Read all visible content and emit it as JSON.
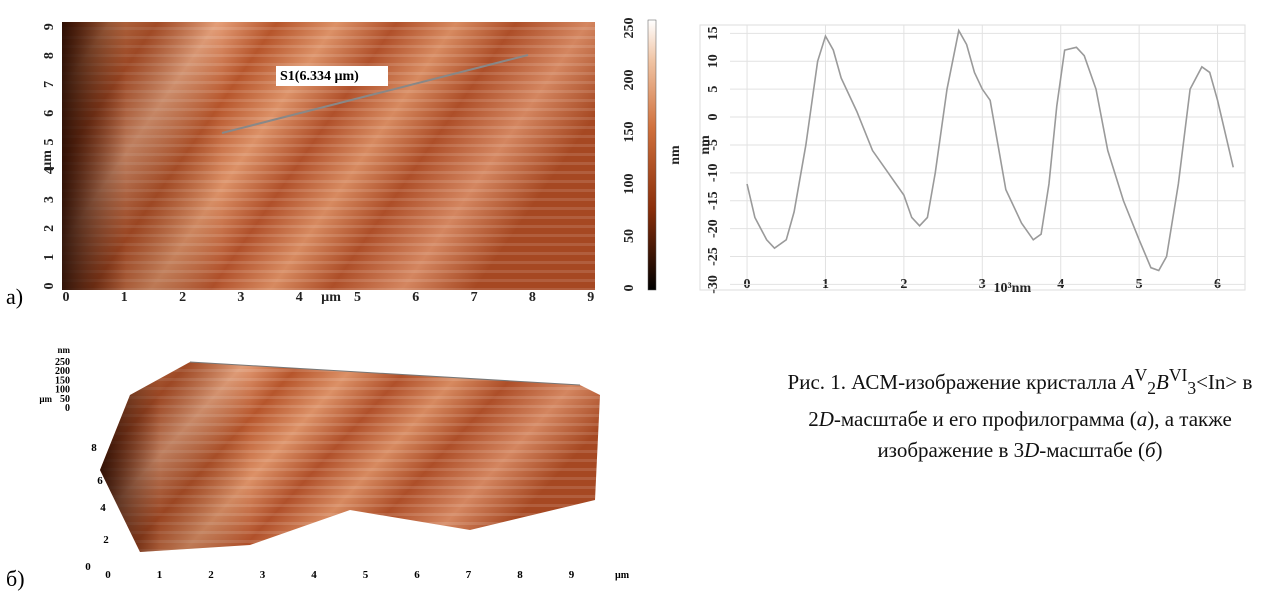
{
  "panel_a": {
    "label": "а)",
    "x_ticks": [
      "0",
      "1",
      "2",
      "3",
      "4",
      "5",
      "6",
      "7",
      "8",
      "9"
    ],
    "x_label": "µm",
    "y_ticks": [
      "0",
      "1",
      "2",
      "3",
      "4",
      "5",
      "6",
      "7",
      "8",
      "9"
    ],
    "y_label": "µm",
    "annotation": "S1(6.334 µm)",
    "colorbar_ticks": [
      "0",
      "50",
      "100",
      "150",
      "200",
      "250"
    ],
    "colorbar_label": "nm"
  },
  "chart_data": {
    "type": "line",
    "x_label": "10³nm",
    "y_label": "nm",
    "x": [
      0,
      0.1,
      0.25,
      0.35,
      0.5,
      0.6,
      0.75,
      0.9,
      1.0,
      1.1,
      1.2,
      1.4,
      1.6,
      1.8,
      2.0,
      2.1,
      2.2,
      2.3,
      2.4,
      2.55,
      2.7,
      2.8,
      2.9,
      3.0,
      3.1,
      3.2,
      3.3,
      3.5,
      3.65,
      3.75,
      3.85,
      3.95,
      4.05,
      4.2,
      4.3,
      4.45,
      4.6,
      4.8,
      5.0,
      5.15,
      5.25,
      5.35,
      5.5,
      5.65,
      5.8,
      5.9,
      6.0,
      6.1,
      6.2
    ],
    "series": [
      {
        "color": "#9a9a9a",
        "values": [
          -12,
          -18,
          -22,
          -23.5,
          -22,
          -17,
          -5,
          10,
          14.5,
          12,
          7,
          1,
          -6,
          -10,
          -14,
          -18,
          -19.5,
          -18,
          -10,
          5,
          15.5,
          13,
          8,
          5,
          3,
          -5,
          -13,
          -19,
          -22,
          -21,
          -12,
          2,
          12,
          12.5,
          11,
          5,
          -6,
          -15,
          -22,
          -27,
          -27.5,
          -25,
          -12,
          5,
          9,
          8,
          3,
          -3,
          -9
        ]
      }
    ],
    "xlim": [
      -0.6,
      6.35
    ],
    "ylim": [
      -31,
      16.5
    ],
    "xticks": [
      0,
      1,
      2,
      3,
      4,
      5,
      6
    ],
    "yticks": [
      15,
      10,
      5,
      0,
      -5,
      -10,
      -15,
      -20,
      -25,
      -30
    ],
    "grid": true
  },
  "panel_b": {
    "label": "б)",
    "z_label": "nm",
    "z_ticks": [
      "250",
      "200",
      "150",
      "100",
      "50",
      "0"
    ],
    "y_label": "µm",
    "y_ticks": [
      "8",
      "6",
      "4",
      "2",
      "0"
    ],
    "x_ticks": [
      "0",
      "1",
      "2",
      "3",
      "4",
      "5",
      "6",
      "7",
      "8",
      "9"
    ],
    "x_label": "µm"
  },
  "caption": [
    "Рис. 1. АСМ-изображение кристалла ",
    "A",
    "V",
    "2",
    "B",
    "VI",
    "3",
    "<In> в 2",
    "D",
    "-масштабе и его профилограмма (",
    "а",
    "), а также изображение в 3",
    "D",
    "-масштабе (",
    "б",
    ")"
  ]
}
